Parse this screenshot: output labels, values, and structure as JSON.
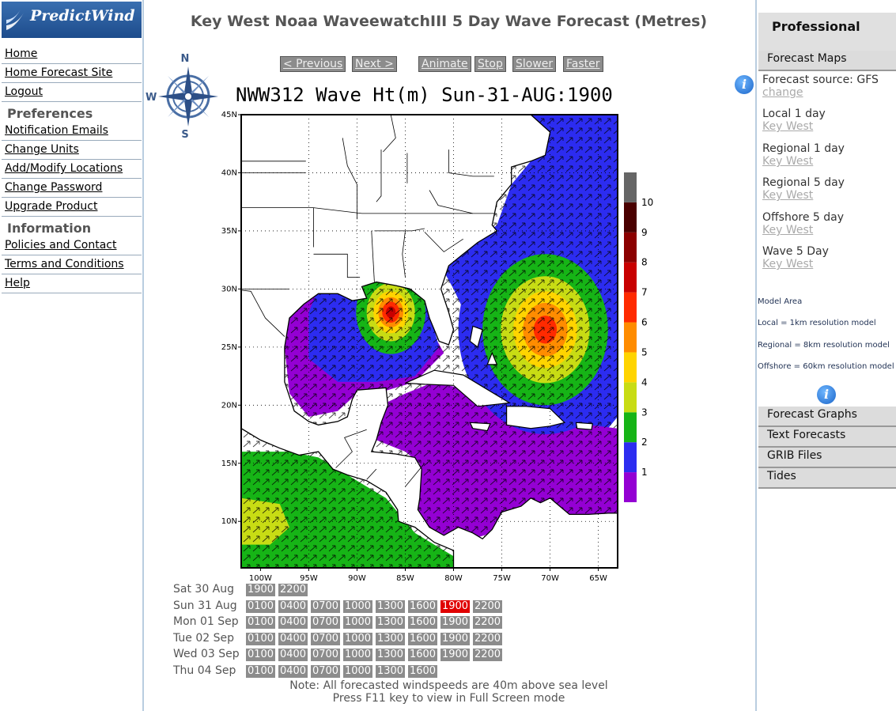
{
  "logo": {
    "text": "PredictWind"
  },
  "nav": {
    "home": "Home",
    "home_forecast": "Home Forecast Site",
    "logout": "Logout",
    "preferences_heading": "Preferences",
    "notification_emails": "Notification Emails",
    "change_units": "Change Units",
    "add_modify_locations": "Add/Modify Locations",
    "change_password": "Change Password",
    "upgrade_product": "Upgrade Product",
    "information_heading": "Information",
    "policies_contact": "Policies and Contact",
    "terms": "Terms and Conditions",
    "help": "Help"
  },
  "page_title": "Key West Noaa WaveewatchIII 5 Day Wave Forecast (Metres)",
  "controls": {
    "previous": "< Previous",
    "next": "Next >",
    "animate": "Animate",
    "stop": "Stop",
    "slower": "Slower",
    "faster": "Faster"
  },
  "compass": {
    "n": "N",
    "s": "S",
    "w": "W"
  },
  "chart_data": {
    "type": "heatmap",
    "title": "NWW312 Wave Ht(m) Sun-31-AUG:1900",
    "x_ticks": [
      "100W",
      "95W",
      "90W",
      "85W",
      "80W",
      "75W",
      "70W",
      "65W"
    ],
    "y_ticks": [
      "45N",
      "40N",
      "35N",
      "30N",
      "25N",
      "20N",
      "15N",
      "10N"
    ],
    "xlim": [
      -102,
      -63
    ],
    "ylim": [
      6,
      45
    ],
    "colorbar": {
      "labels": [
        "1",
        "2",
        "3",
        "4",
        "5",
        "6",
        "7",
        "8",
        "9",
        "10"
      ],
      "colors": [
        "#9400d3",
        "#2c2cf0",
        "#16b416",
        "#c8dc14",
        "#ffd400",
        "#ff8c00",
        "#ff2a00",
        "#c80000",
        "#8b0000",
        "#4a0000",
        "#666666"
      ]
    },
    "features": [
      {
        "name": "gulf-storm",
        "center": [
          -86.5,
          28.0
        ],
        "peak_m": 7
      },
      {
        "name": "atlantic-storm",
        "center": [
          -70.5,
          26.5
        ],
        "peak_m": 6
      }
    ]
  },
  "timesteps": [
    {
      "day": "Sat 30 Aug",
      "times": [
        "1900",
        "2200"
      ]
    },
    {
      "day": "Sun 31 Aug",
      "times": [
        "0100",
        "0400",
        "0700",
        "1000",
        "1300",
        "1600",
        "1900",
        "2200"
      ],
      "selected": "1900"
    },
    {
      "day": "Mon 01 Sep",
      "times": [
        "0100",
        "0400",
        "0700",
        "1000",
        "1300",
        "1600",
        "1900",
        "2200"
      ]
    },
    {
      "day": "Tue 02 Sep",
      "times": [
        "0100",
        "0400",
        "0700",
        "1000",
        "1300",
        "1600",
        "1900",
        "2200"
      ]
    },
    {
      "day": "Wed 03 Sep",
      "times": [
        "0100",
        "0400",
        "0700",
        "1000",
        "1300",
        "1600",
        "1900",
        "2200"
      ]
    },
    {
      "day": "Thu 04 Sep",
      "times": [
        "0100",
        "0400",
        "0700",
        "1000",
        "1300",
        "1600"
      ]
    }
  ],
  "notes": {
    "line1": "Note: All forecasted windspeeds are 40m above sea level",
    "line2": "Press F11 key to view in Full Screen mode"
  },
  "right": {
    "professional": "Professional",
    "forecast_maps": "Forecast Maps",
    "source_label": "Forecast source: GFS",
    "change": "change",
    "items": [
      {
        "label": "Local 1 day",
        "link": "Key West"
      },
      {
        "label": "Regional 1 day",
        "link": "Key West"
      },
      {
        "label": "Regional 5 day",
        "link": "Key West"
      },
      {
        "label": "Offshore 5 day",
        "link": "Key West"
      },
      {
        "label": "Wave 5 Day",
        "link": "Key West"
      }
    ],
    "model_area": "Model Area",
    "local_res": "Local = 1km resolution model",
    "regional_res": "Regional = 8km resolution model",
    "offshore_res": "Offshore = 60km resolution model",
    "forecast_graphs": "Forecast Graphs",
    "text_forecasts": "Text Forecasts",
    "grib_files": "GRIB Files",
    "tides": "Tides"
  }
}
